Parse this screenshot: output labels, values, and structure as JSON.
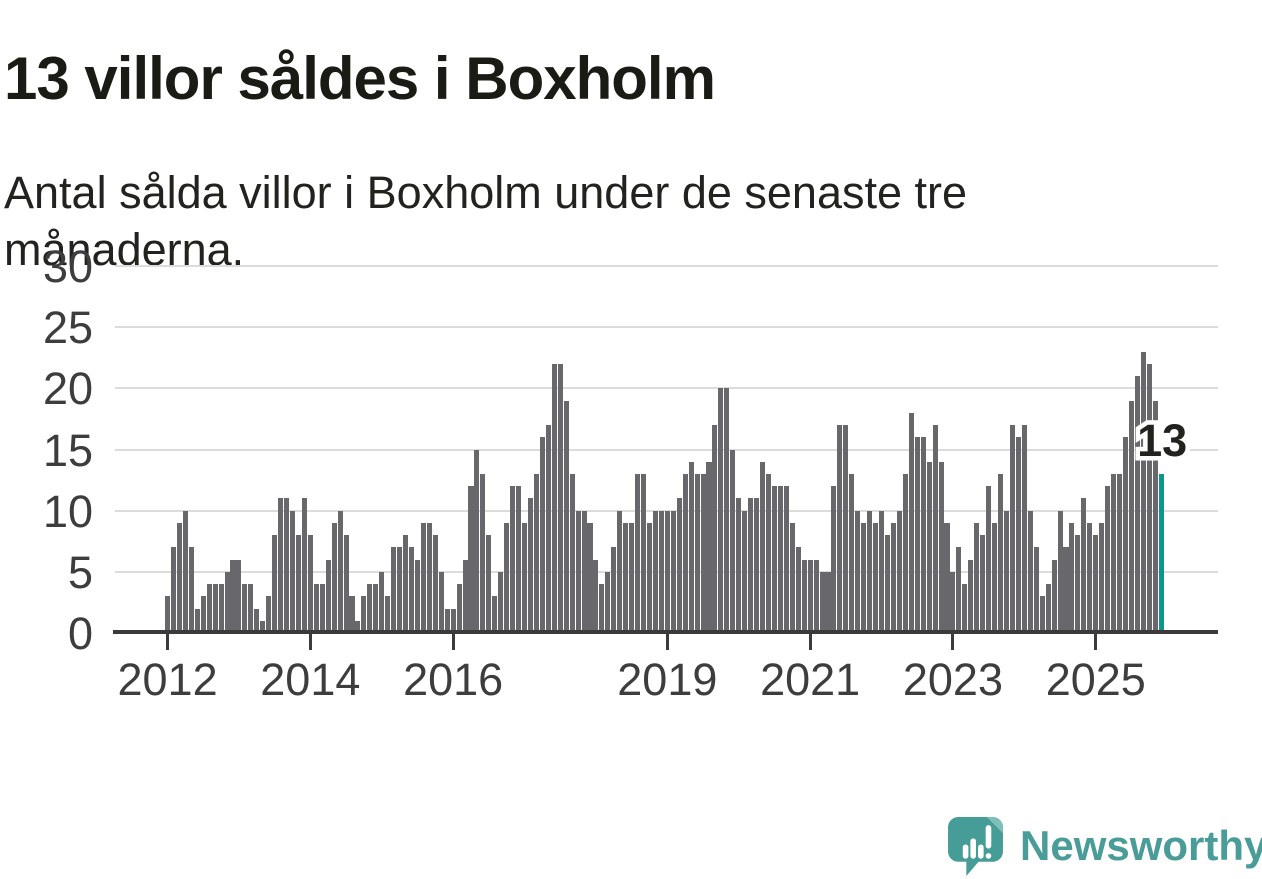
{
  "title": "13 villor såldes i Boxholm",
  "subtitle": "Antal sålda villor i Boxholm under de senaste tre månaderna.",
  "branding": {
    "wordmark": "Newsworthy",
    "logo_icon": "newsworthy-speech-bubble-barchart-icon"
  },
  "colors": {
    "bar": "#67676c",
    "highlight": "#0d968e",
    "axis": "#3a3a3a",
    "grid": "#dcdcdc",
    "tick_label": "#3d3d3d",
    "title_text": "#1b1b16",
    "brand_bubble": "#469c97",
    "brand_bubble_fold": "#7fbfba",
    "brand_wordmark": "#4a9c99"
  },
  "chart_data": {
    "type": "bar",
    "title": "13 villor såldes i Boxholm",
    "subtitle": "Antal sålda villor i Boxholm under de senaste tre månaderna.",
    "x_start": "2012-01",
    "x_freq": "monthly",
    "values": [
      3,
      7,
      9,
      10,
      7,
      2,
      3,
      4,
      4,
      4,
      5,
      6,
      6,
      4,
      4,
      2,
      1,
      3,
      8,
      11,
      11,
      10,
      8,
      11,
      8,
      4,
      4,
      6,
      9,
      10,
      8,
      3,
      1,
      3,
      4,
      4,
      5,
      3,
      7,
      7,
      8,
      7,
      6,
      9,
      9,
      8,
      5,
      2,
      2,
      4,
      6,
      12,
      15,
      13,
      8,
      3,
      5,
      9,
      12,
      12,
      9,
      11,
      13,
      16,
      17,
      22,
      22,
      19,
      13,
      10,
      10,
      9,
      6,
      4,
      5,
      7,
      10,
      9,
      9,
      13,
      13,
      9,
      10,
      10,
      10,
      10,
      11,
      13,
      14,
      13,
      13,
      14,
      17,
      20,
      20,
      15,
      11,
      10,
      11,
      11,
      14,
      13,
      12,
      12,
      12,
      9,
      7,
      6,
      6,
      6,
      5,
      5,
      12,
      17,
      17,
      13,
      10,
      9,
      10,
      9,
      10,
      8,
      9,
      10,
      13,
      18,
      16,
      16,
      14,
      17,
      14,
      9,
      5,
      7,
      4,
      6,
      9,
      8,
      12,
      9,
      13,
      10,
      17,
      16,
      17,
      10,
      7,
      3,
      4,
      6,
      10,
      7,
      9,
      8,
      11,
      9,
      8,
      9,
      12,
      13,
      13,
      16,
      19,
      21,
      23,
      22,
      19,
      13
    ],
    "highlight_index": 167,
    "highlight_value_label": "13",
    "x_tick_years": [
      2012,
      2014,
      2016,
      2019,
      2021,
      2023,
      2025
    ],
    "y_ticks": [
      0,
      5,
      10,
      15,
      20,
      25,
      30
    ],
    "ylim": [
      0,
      30
    ],
    "xlabel": "",
    "ylabel": "",
    "grid": "horizontal",
    "legend": "none"
  }
}
